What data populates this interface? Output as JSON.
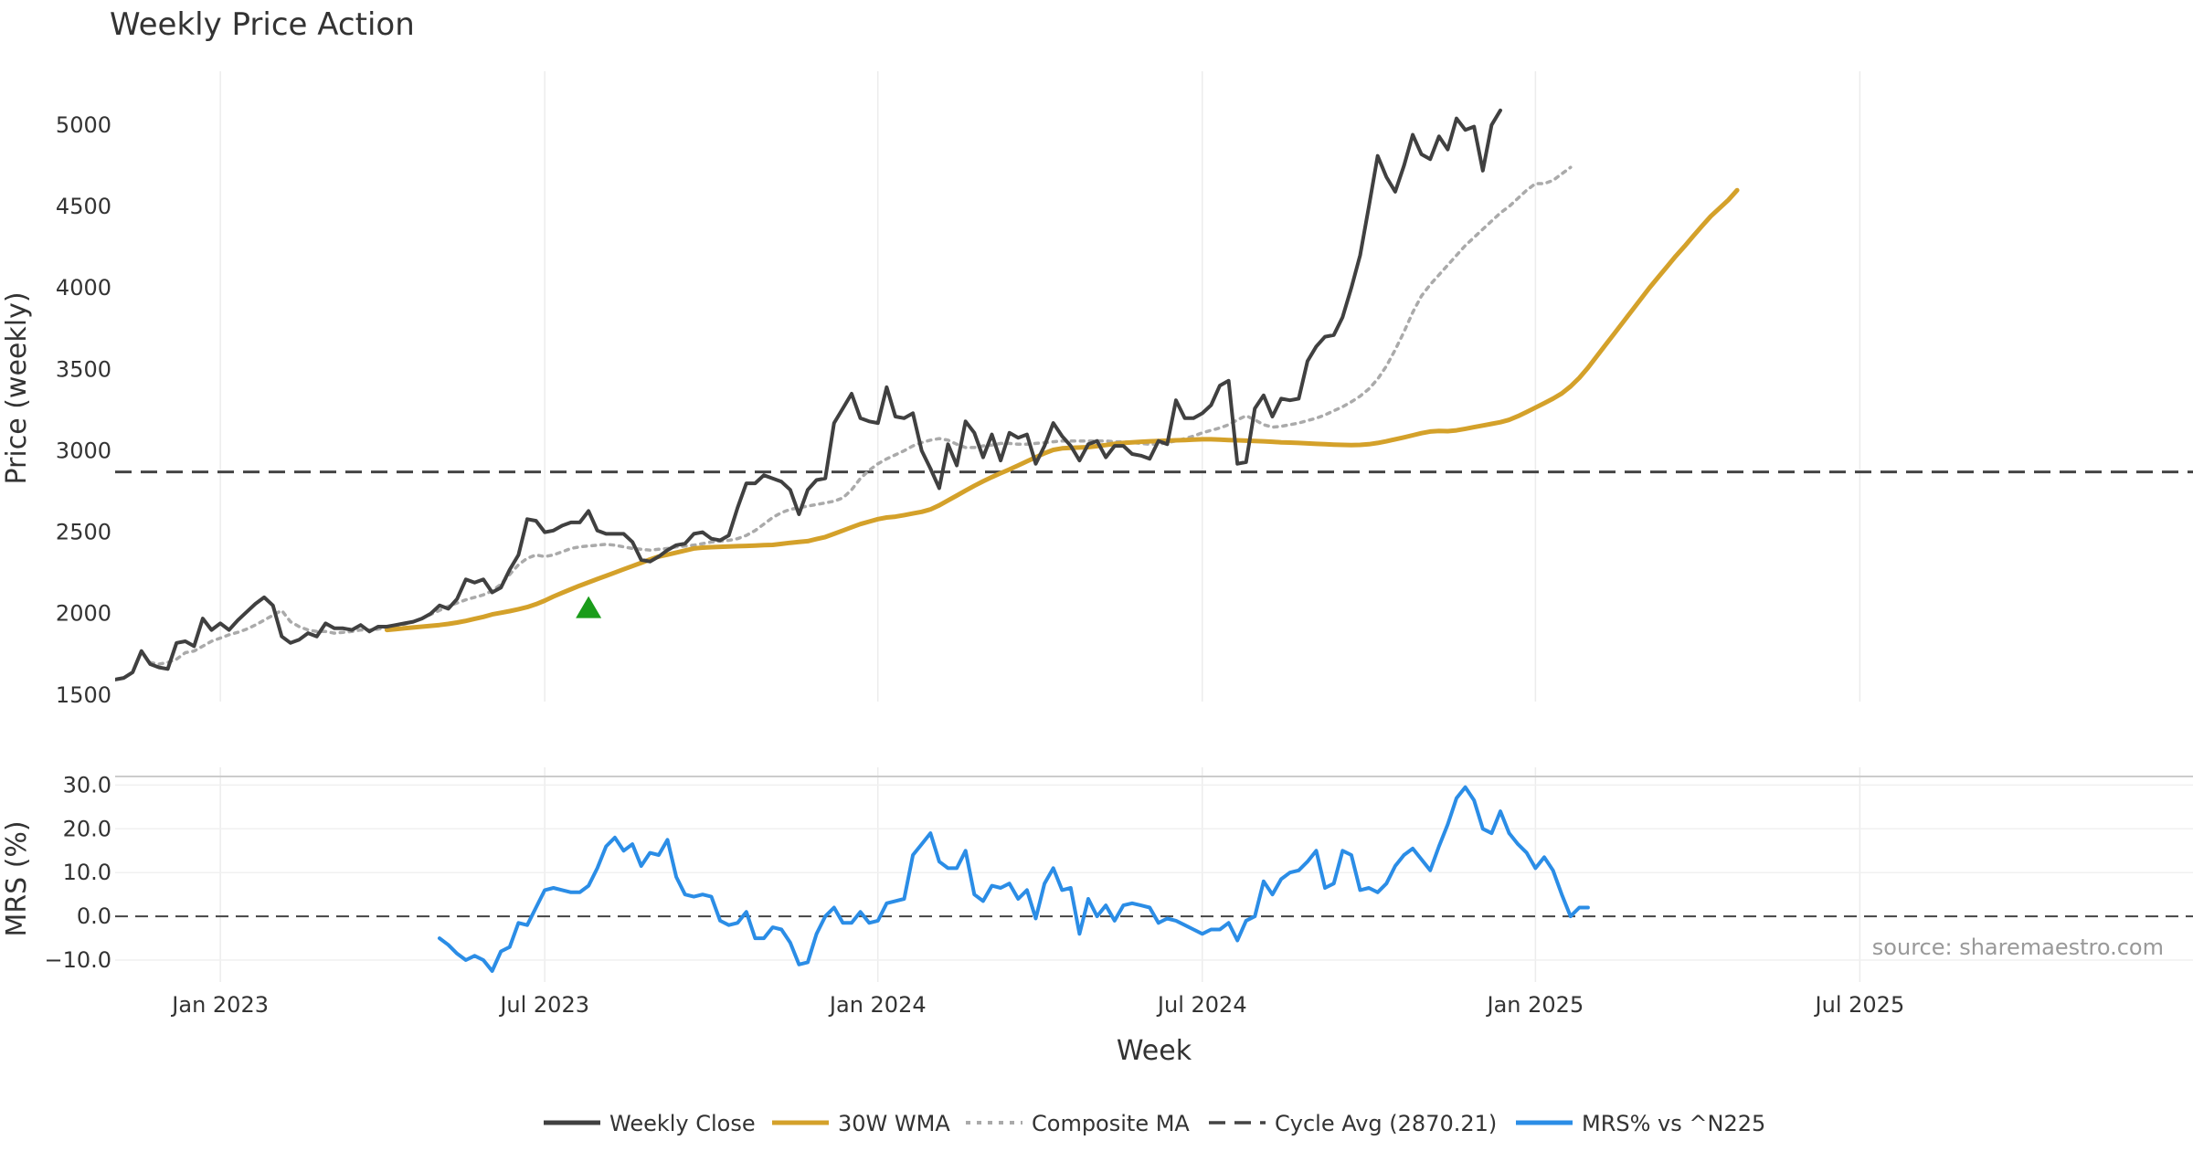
{
  "chart_data": {
    "type": "line",
    "title": "Weekly Price Action",
    "source": "source: sharemaestro.com",
    "xlabel": "Week",
    "x_ticks": [
      "Jan 2023",
      "Jul 2023",
      "Jan 2024",
      "Jul 2024",
      "Jan 2025",
      "Jul 2025"
    ],
    "x_tick_weeks": [
      8,
      45,
      83,
      120,
      158,
      195
    ],
    "week_range": [
      -4,
      233
    ],
    "price_panel": {
      "ylabel": "Price (weekly)",
      "ylim": [
        1460,
        5330
      ],
      "y_ticks": [
        1500,
        2000,
        2500,
        3000,
        3500,
        4000,
        4500,
        5000
      ],
      "y_tick_labels": [
        "1500",
        "2000",
        "2500",
        "3000",
        "3500",
        "4000",
        "4500",
        "5000"
      ]
    },
    "mrs_panel": {
      "ylabel": "MRS (%)",
      "ylim": [
        -15,
        33
      ],
      "y_ticks": [
        -10,
        0,
        10,
        20,
        30
      ],
      "y_tick_labels": [
        "−10.0",
        "0.0",
        "10.0",
        "20.0",
        "30.0"
      ]
    },
    "cycle_avg": 2870.21,
    "signal_marker": {
      "week": 50,
      "value": 2040,
      "color": "#1a9c1a"
    },
    "series": [
      {
        "name": "Weekly Close",
        "key": "close",
        "color": "#404040",
        "start": -4,
        "values": [
          1595,
          1605,
          1640,
          1770,
          1690,
          1670,
          1660,
          1820,
          1830,
          1800,
          1970,
          1900,
          1940,
          1900,
          1960,
          2010,
          2060,
          2100,
          2050,
          1860,
          1820,
          1840,
          1880,
          1860,
          1940,
          1910,
          1910,
          1900,
          1930,
          1890,
          1920,
          1920,
          1930,
          1940,
          1950,
          1970,
          2000,
          2050,
          2030,
          2090,
          2210,
          2190,
          2210,
          2130,
          2160,
          2270,
          2360,
          2580,
          2570,
          2500,
          2510,
          2540,
          2560,
          2560,
          2630,
          2510,
          2490,
          2490,
          2490,
          2440,
          2330,
          2320,
          2350,
          2390,
          2420,
          2430,
          2490,
          2500,
          2460,
          2450,
          2480,
          2650,
          2800,
          2800,
          2850,
          2830,
          2810,
          2760,
          2610,
          2760,
          2820,
          2830,
          3170,
          3260,
          3350,
          3200,
          3180,
          3170,
          3390,
          3210,
          3200,
          3230,
          3000,
          2890,
          2770,
          3040,
          2910,
          3180,
          3110,
          2960,
          3100,
          2940,
          3110,
          3080,
          3100,
          2920,
          3030,
          3170,
          3090,
          3030,
          2940,
          3040,
          3060,
          2960,
          3030,
          3030,
          2980,
          2970,
          2950,
          3060,
          3040,
          3310,
          3200,
          3200,
          3230,
          3280,
          3400,
          3430,
          2920,
          2930,
          3260,
          3340,
          3210,
          3320,
          3310,
          3320,
          3550,
          3640,
          3700,
          3710,
          3820,
          4000,
          4200,
          4500,
          4810,
          4680,
          4590,
          4750,
          4940,
          4820,
          4790,
          4930,
          4850,
          5040,
          4970,
          4990,
          4720,
          5000,
          5090
        ]
      },
      {
        "name": "30W WMA",
        "key": "wma",
        "color": "#d4a12a",
        "start": 27,
        "values": [
          1900,
          1905,
          1910,
          1915,
          1920,
          1925,
          1930,
          1937,
          1945,
          1955,
          1968,
          1980,
          1995,
          2005,
          2015,
          2027,
          2040,
          2058,
          2080,
          2105,
          2128,
          2150,
          2172,
          2192,
          2212,
          2232,
          2252,
          2272,
          2292,
          2312,
          2332,
          2350,
          2362,
          2375,
          2387,
          2400,
          2405,
          2408,
          2410,
          2412,
          2414,
          2416,
          2418,
          2420,
          2422,
          2428,
          2435,
          2440,
          2445,
          2458,
          2470,
          2490,
          2510,
          2530,
          2550,
          2565,
          2580,
          2590,
          2595,
          2605,
          2615,
          2625,
          2640,
          2665,
          2695,
          2725,
          2755,
          2785,
          2812,
          2838,
          2862,
          2885,
          2910,
          2935,
          2960,
          2985,
          3005,
          3015,
          3018,
          3020,
          3022,
          3028,
          3035,
          3042,
          3048,
          3052,
          3055,
          3058,
          3060,
          3062,
          3064,
          3066,
          3068,
          3070,
          3070,
          3068,
          3066,
          3064,
          3062,
          3060,
          3058,
          3055,
          3052,
          3050,
          3048,
          3045,
          3042,
          3040,
          3038,
          3036,
          3035,
          3036,
          3040,
          3048,
          3058,
          3070,
          3082,
          3095,
          3108,
          3118,
          3122,
          3120,
          3125,
          3135,
          3145,
          3155,
          3165,
          3175,
          3190,
          3212,
          3238,
          3265,
          3292,
          3320,
          3352,
          3395,
          3448,
          3510,
          3580,
          3650,
          3720,
          3790,
          3860,
          3930,
          4000,
          4065,
          4130,
          4195,
          4255,
          4318,
          4380,
          4440,
          4490,
          4540,
          4600
        ]
      },
      {
        "name": "Composite MA",
        "key": "composite",
        "color": "#aaaaaa",
        "start": 0,
        "values": [
          1700,
          1690,
          1700,
          1720,
          1760,
          1770,
          1800,
          1830,
          1850,
          1870,
          1885,
          1905,
          1930,
          1960,
          1990,
          2020,
          1950,
          1920,
          1900,
          1890,
          1890,
          1880,
          1885,
          1890,
          1900,
          1900,
          1905,
          1915,
          1925,
          1935,
          1950,
          1970,
          1995,
          2020,
          2045,
          2065,
          2085,
          2100,
          2115,
          2140,
          2180,
          2240,
          2300,
          2340,
          2360,
          2350,
          2360,
          2380,
          2400,
          2410,
          2415,
          2420,
          2425,
          2420,
          2410,
          2400,
          2395,
          2390,
          2395,
          2400,
          2410,
          2415,
          2420,
          2430,
          2440,
          2445,
          2450,
          2460,
          2480,
          2510,
          2550,
          2590,
          2620,
          2640,
          2650,
          2660,
          2670,
          2680,
          2690,
          2710,
          2760,
          2830,
          2880,
          2920,
          2950,
          2975,
          3000,
          3030,
          3050,
          3065,
          3075,
          3065,
          3040,
          3020,
          3020,
          3030,
          3035,
          3045,
          3045,
          3040,
          3040,
          3045,
          3050,
          3055,
          3060,
          3060,
          3060,
          3060,
          3060,
          3060,
          3055,
          3055,
          3050,
          3045,
          3040,
          3040,
          3050,
          3060,
          3075,
          3090,
          3110,
          3125,
          3140,
          3160,
          3190,
          3215,
          3190,
          3160,
          3145,
          3150,
          3160,
          3170,
          3185,
          3200,
          3220,
          3245,
          3270,
          3300,
          3335,
          3380,
          3440,
          3520,
          3620,
          3730,
          3850,
          3950,
          4020,
          4080,
          4140,
          4200,
          4260,
          4310,
          4360,
          4410,
          4460,
          4500,
          4550,
          4600,
          4640,
          4640,
          4660,
          4700,
          4740
        ]
      },
      {
        "name": "MRS% vs ^N225",
        "key": "mrs",
        "color": "#2b8de6",
        "start": 33,
        "values": [
          -5,
          -6.5,
          -8.5,
          -10,
          -9,
          -10,
          -12.5,
          -8,
          -7,
          -1.5,
          -2,
          2,
          6,
          6.5,
          6,
          5.5,
          5.5,
          7,
          11,
          16,
          18,
          15,
          16.5,
          11.5,
          14.5,
          14,
          17.5,
          9,
          5,
          4.5,
          5,
          4.5,
          -1,
          -2,
          -1.5,
          1,
          -5,
          -5,
          -2.5,
          -3,
          -6,
          -11,
          -10.5,
          -4,
          0,
          2,
          -1.5,
          -1.5,
          1,
          -1.5,
          -1,
          3,
          3.5,
          4,
          14,
          16.5,
          19,
          12.5,
          11,
          11,
          15,
          5,
          3.5,
          7,
          6.5,
          7.5,
          4,
          6,
          -0.5,
          7.5,
          11,
          6,
          6.5,
          -4,
          4,
          0,
          2.5,
          -1,
          2.5,
          3,
          2.5,
          2,
          -1.5,
          -0.5,
          -1,
          -2,
          -3,
          -4,
          -3,
          -3,
          -1.5,
          -5.5,
          -1,
          0,
          8,
          5,
          8.5,
          10,
          10.5,
          12.5,
          15,
          6.5,
          7.5,
          15,
          14,
          6,
          6.5,
          5.5,
          7.5,
          11.5,
          14,
          15.5,
          13,
          10.5,
          16,
          21,
          27,
          29.5,
          26.5,
          20,
          19,
          24,
          19,
          16.5,
          14.5,
          11,
          13.5,
          10.5,
          5,
          0,
          2,
          2
        ]
      }
    ]
  },
  "legend": [
    {
      "label": "Weekly Close",
      "style": "solid",
      "color": "#404040"
    },
    {
      "label": "30W WMA",
      "style": "solid",
      "color": "#d4a12a"
    },
    {
      "label": "Composite MA",
      "style": "dotted",
      "color": "#aaaaaa"
    },
    {
      "label": "Cycle Avg (2870.21)",
      "style": "dashed",
      "color": "#444444"
    },
    {
      "label": "MRS% vs ^N225",
      "style": "solid",
      "color": "#2b8de6"
    }
  ]
}
